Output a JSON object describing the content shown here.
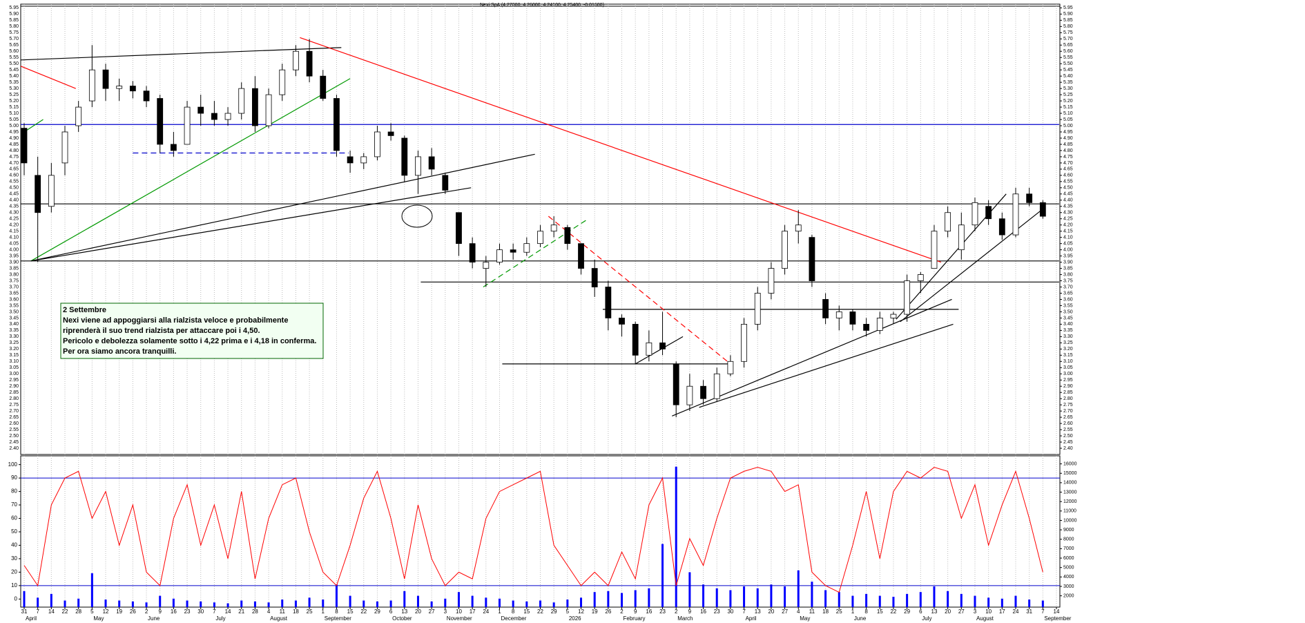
{
  "chart_data": {
    "type": "candlestick",
    "title": "Nexi SpA (4.27000, 4.26000, 4.24100, 4.25400, -0.01600)",
    "categories": [
      "31",
      "7",
      "14",
      "22",
      "28",
      "5",
      "12",
      "19",
      "26",
      "2",
      "9",
      "16",
      "23",
      "30",
      "7",
      "14",
      "21",
      "28",
      "4",
      "11",
      "18",
      "25",
      "1",
      "8",
      "15",
      "22",
      "29",
      "6",
      "13",
      "20",
      "27",
      "3",
      "10",
      "17",
      "24",
      "1",
      "8",
      "15",
      "22",
      "29",
      "5",
      "12",
      "19",
      "26",
      "2",
      "9",
      "16",
      "23",
      "2",
      "9",
      "16",
      "23",
      "30",
      "7",
      "13",
      "20",
      "27",
      "4",
      "11",
      "18",
      "25",
      "1",
      "8",
      "15",
      "22",
      "29",
      "6",
      "13",
      "20",
      "27",
      "3",
      "10",
      "17",
      "24",
      "31",
      "7",
      "14"
    ],
    "months": [
      "April",
      null,
      null,
      null,
      null,
      "May",
      null,
      null,
      null,
      "June",
      null,
      null,
      null,
      null,
      "July",
      null,
      null,
      null,
      "August",
      null,
      null,
      null,
      "September",
      null,
      null,
      null,
      null,
      "October",
      null,
      null,
      null,
      "November",
      null,
      null,
      null,
      "December",
      null,
      null,
      null,
      null,
      "2026",
      null,
      null,
      null,
      "February",
      null,
      null,
      null,
      "March",
      null,
      null,
      null,
      null,
      "April",
      null,
      null,
      null,
      "May",
      null,
      null,
      null,
      "June",
      null,
      null,
      null,
      null,
      "July",
      null,
      null,
      null,
      "August",
      null,
      null,
      null,
      null,
      "September",
      null
    ],
    "open": [
      4.98,
      4.6,
      4.35,
      4.7,
      5,
      5.2,
      5.45,
      5.3,
      5.32,
      5.28,
      5.22,
      4.85,
      4.85,
      5.15,
      5.1,
      5.05,
      5.1,
      5.3,
      5,
      5.25,
      5.45,
      5.6,
      5.4,
      5.22,
      4.75,
      4.7,
      4.75,
      4.95,
      4.9,
      4.6,
      4.75,
      4.6,
      4.3,
      4.05,
      3.85,
      3.9,
      4,
      3.98,
      4.05,
      4.15,
      4.18,
      4.05,
      3.85,
      3.7,
      3.45,
      3.4,
      3.15,
      3.25,
      3.08,
      2.75,
      2.9,
      2.8,
      3,
      3.1,
      3.4,
      3.65,
      3.85,
      4.15,
      4.1,
      3.6,
      3.45,
      3.5,
      3.4,
      3.35,
      3.45,
      3.48,
      3.75,
      3.85,
      4.15,
      4,
      4.2,
      4.35,
      4.25,
      4.12,
      4.45,
      4.38,
      null
    ],
    "high": [
      5.02,
      4.75,
      4.7,
      5,
      5.2,
      5.65,
      5.5,
      5.38,
      5.36,
      5.32,
      5.25,
      4.95,
      5.2,
      5.25,
      5.2,
      5.15,
      5.35,
      5.4,
      5.3,
      5.5,
      5.65,
      5.7,
      5.45,
      5.25,
      4.8,
      4.78,
      5,
      5.02,
      4.92,
      4.8,
      4.82,
      4.62,
      4.3,
      4.1,
      3.95,
      4.05,
      4.05,
      4.1,
      4.2,
      4.27,
      4.2,
      4.05,
      3.92,
      3.75,
      3.48,
      3.42,
      3.35,
      3.5,
      3.1,
      3,
      2.95,
      3.05,
      3.15,
      3.45,
      3.7,
      3.9,
      4.2,
      4.32,
      4.12,
      3.65,
      3.55,
      3.52,
      3.45,
      3.5,
      3.5,
      3.8,
      3.82,
      4.2,
      4.35,
      4.3,
      4.42,
      4.4,
      4.3,
      4.5,
      4.5,
      4.4,
      null
    ],
    "low": [
      4.6,
      3.9,
      4.3,
      4.6,
      4.95,
      5.15,
      5.2,
      5.2,
      5.22,
      5.15,
      4.78,
      4.75,
      4.85,
      5,
      5,
      5,
      5.05,
      4.95,
      4.98,
      5.2,
      5.4,
      5.35,
      5.2,
      4.75,
      4.62,
      4.65,
      4.72,
      4.88,
      4.55,
      4.45,
      4.6,
      4.45,
      3.95,
      3.85,
      3.7,
      3.88,
      3.92,
      3.95,
      4.02,
      4.1,
      4,
      3.8,
      3.62,
      3.35,
      3.3,
      3.08,
      3.1,
      3.15,
      2.65,
      2.7,
      2.75,
      2.78,
      2.98,
      3.05,
      3.35,
      3.6,
      3.8,
      4.05,
      3.7,
      3.4,
      3.35,
      3.35,
      3.3,
      3.32,
      3.4,
      3.42,
      3.65,
      3.85,
      4.1,
      3.92,
      4.15,
      4.2,
      4.08,
      4.1,
      4.35,
      4.25,
      null
    ],
    "close": [
      4.7,
      4.3,
      4.6,
      4.95,
      5.15,
      5.45,
      5.3,
      5.32,
      5.28,
      5.2,
      4.85,
      4.8,
      5.15,
      5.1,
      5.05,
      5.1,
      5.3,
      5,
      5.25,
      5.45,
      5.6,
      5.4,
      5.22,
      4.8,
      4.7,
      4.75,
      4.95,
      4.92,
      4.6,
      4.75,
      4.65,
      4.48,
      4.05,
      3.9,
      3.9,
      4,
      3.98,
      4.05,
      4.15,
      4.2,
      4.05,
      3.85,
      3.7,
      3.45,
      3.4,
      3.15,
      3.25,
      3.2,
      2.75,
      2.9,
      2.8,
      3,
      3.1,
      3.4,
      3.65,
      3.85,
      4.15,
      4.2,
      3.75,
      3.45,
      3.5,
      3.4,
      3.35,
      3.45,
      3.48,
      3.75,
      3.8,
      4.15,
      4.3,
      4.2,
      4.38,
      4.25,
      4.12,
      4.45,
      4.38,
      4.27,
      null
    ],
    "up_color": "#ffffff",
    "down_color": "#000000",
    "ylim": [
      2.35,
      5.98
    ],
    "yticks": [
      {
        "value": 2.4,
        "label": "2.40"
      },
      2.45,
      {
        "value": 2.5,
        "label": "2.50"
      },
      2.55,
      {
        "value": 2.6,
        "label": "2.60"
      },
      2.65,
      {
        "value": 2.7,
        "label": "2.70"
      },
      2.75,
      {
        "value": 2.8,
        "label": "2.80"
      },
      2.85,
      {
        "value": 2.9,
        "label": "2.90"
      },
      2.95,
      {
        "value": 3,
        "label": "3.00"
      },
      3.05,
      {
        "value": 3.1,
        "label": "3.10"
      },
      3.15,
      {
        "value": 3.2,
        "label": "3.20"
      },
      3.25,
      {
        "value": 3.3,
        "label": "3.30"
      },
      3.35,
      {
        "value": 3.4,
        "label": "3.40"
      },
      3.45,
      {
        "value": 3.5,
        "label": "3.50"
      },
      3.55,
      {
        "value": 3.6,
        "label": "3.60"
      },
      3.65,
      {
        "value": 3.7,
        "label": "3.70"
      },
      3.75,
      {
        "value": 3.8,
        "label": "3.80"
      },
      3.85,
      {
        "value": 3.9,
        "label": "3.90"
      },
      3.95,
      {
        "value": 4,
        "label": "4.00"
      },
      4.05,
      {
        "value": 4.1,
        "label": "4.10"
      },
      4.15,
      {
        "value": 4.2,
        "label": "4.20"
      },
      4.25,
      {
        "value": 4.3,
        "label": "4.30"
      },
      4.35,
      {
        "value": 4.4,
        "label": "4.40"
      },
      4.45,
      {
        "value": 4.5,
        "label": "4.50"
      },
      4.55,
      {
        "value": 4.6,
        "label": "4.60"
      },
      4.65,
      {
        "value": 4.7,
        "label": "4.70"
      },
      4.75,
      {
        "value": 4.8,
        "label": "4.80"
      },
      4.85,
      {
        "value": 4.9,
        "label": "4.90"
      },
      4.95,
      {
        "value": 5,
        "label": "5.00"
      },
      5.05,
      {
        "value": 5.1,
        "label": "5.10"
      },
      5.15,
      {
        "value": 5.2,
        "label": "5.20"
      },
      5.25,
      {
        "value": 5.3,
        "label": "5.30"
      },
      5.35,
      {
        "value": 5.4,
        "label": "5.40"
      },
      5.45,
      {
        "value": 5.5,
        "label": "5.50"
      },
      5.55,
      {
        "value": 5.6,
        "label": "5.60"
      },
      5.65,
      {
        "value": 5.7,
        "label": "5.70"
      },
      5.75,
      {
        "value": 5.8,
        "label": "5.80"
      },
      5.85,
      {
        "value": 5.9,
        "label": "5.90"
      },
      5.95
    ],
    "xgrid": true,
    "drawings": [
      {
        "x": [
          -0.25,
          76.2
        ],
        "y": [
          5.01,
          5.01
        ],
        "color": "#0000cc",
        "dash": false
      },
      {
        "x": [
          -0.25,
          76.2
        ],
        "y": [
          4.37,
          4.37
        ],
        "color": "#000000",
        "dash": false
      },
      {
        "x": [
          -0.25,
          76.2
        ],
        "y": [
          3.91,
          3.91
        ],
        "color": "#000000",
        "dash": false
      },
      {
        "x": [
          29.2,
          76.2
        ],
        "y": [
          3.74,
          3.74
        ],
        "color": "#000000",
        "dash": false
      },
      {
        "x": [
          42.6,
          68.8
        ],
        "y": [
          3.52,
          3.52
        ],
        "color": "#000000",
        "dash": false
      },
      {
        "x": [
          35.2,
          51.8
        ],
        "y": [
          3.08,
          3.08
        ],
        "color": "#000000",
        "dash": false
      },
      {
        "x": [
          -0.25,
          3.8
        ],
        "y": [
          5.48,
          5.3
        ],
        "color": "#ff0000",
        "dash": false
      },
      {
        "x": [
          -0.25,
          23.35
        ],
        "y": [
          5.53,
          5.63
        ],
        "color": "#000000",
        "dash": false
      },
      {
        "x": [
          20.3,
          67.5
        ],
        "y": [
          5.71,
          3.9
        ],
        "color": "#ff0000",
        "dash": false
      },
      {
        "x": [
          0.5,
          24
        ],
        "y": [
          3.91,
          5.38
        ],
        "color": "#009900",
        "dash": false
      },
      {
        "x": [
          0,
          1.4
        ],
        "y": [
          4.95,
          5.05
        ],
        "color": "#009900",
        "dash": false
      },
      {
        "x": [
          8,
          23.9
        ],
        "y": [
          4.78,
          4.78
        ],
        "color": "#0000cc",
        "dash": true
      },
      {
        "x": [
          0.5,
          37.6
        ],
        "y": [
          3.91,
          4.77
        ],
        "color": "#000000",
        "dash": false
      },
      {
        "x": [
          0.5,
          32.9
        ],
        "y": [
          3.91,
          4.5
        ],
        "color": "#000000",
        "dash": false
      },
      {
        "x": [
          33.8,
          41.4
        ],
        "y": [
          3.7,
          4.24
        ],
        "color": "#009900",
        "dash": true
      },
      {
        "x": [
          38.6,
          52
        ],
        "y": [
          4.27,
          3.08
        ],
        "color": "#ff0000",
        "dash": true
      },
      {
        "x": [
          45,
          48.5
        ],
        "y": [
          3.08,
          3.3
        ],
        "color": "#000000",
        "dash": false
      },
      {
        "x": [
          47.7,
          68.3
        ],
        "y": [
          2.66,
          3.6
        ],
        "color": "#000000",
        "dash": false
      },
      {
        "x": [
          49.7,
          68.4
        ],
        "y": [
          2.73,
          3.4
        ],
        "color": "#000000",
        "dash": false
      },
      {
        "x": [
          64.2,
          72.3
        ],
        "y": [
          3.44,
          4.45
        ],
        "color": "#000000",
        "dash": false
      },
      {
        "x": [
          64.5,
          74.9
        ],
        "y": [
          3.42,
          4.32
        ],
        "color": "#000000",
        "dash": false
      }
    ],
    "oscillator": {
      "values": [
        25,
        10,
        70,
        90,
        95,
        60,
        80,
        40,
        70,
        20,
        10,
        60,
        85,
        40,
        70,
        30,
        80,
        15,
        60,
        85,
        90,
        50,
        20,
        10,
        40,
        75,
        95,
        60,
        15,
        70,
        30,
        10,
        20,
        15,
        60,
        80,
        85,
        90,
        95,
        40,
        25,
        10,
        20,
        10,
        35,
        15,
        70,
        90,
        10,
        45,
        25,
        60,
        90,
        95,
        98,
        95,
        80,
        85,
        20,
        10,
        5,
        40,
        80,
        30,
        80,
        95,
        90,
        98,
        95,
        60,
        85,
        40,
        70,
        95,
        60,
        20,
        null
      ],
      "color": "#ff0000",
      "ylim": [
        -6,
        106.5
      ],
      "yticks": [
        0,
        10,
        20,
        30,
        40,
        50,
        60,
        70,
        80,
        90,
        100
      ],
      "levels": [
        10,
        90
      ],
      "level_color": "#0000cc"
    },
    "volume": {
      "values": [
        2500,
        1800,
        2200,
        1500,
        1700,
        4400,
        1600,
        1500,
        1400,
        1300,
        2000,
        1700,
        1500,
        1400,
        1300,
        1200,
        1500,
        1400,
        1300,
        1600,
        1500,
        1800,
        1600,
        3200,
        2000,
        1500,
        1400,
        1500,
        2500,
        2000,
        1400,
        1700,
        2400,
        2000,
        1800,
        1700,
        1500,
        1400,
        1500,
        1300,
        1600,
        1800,
        2400,
        2500,
        2300,
        2600,
        2800,
        7500,
        15700,
        4500,
        3200,
        2800,
        2600,
        3000,
        2800,
        3200,
        3000,
        4700,
        3500,
        2600,
        2400,
        2000,
        2200,
        2000,
        1900,
        2200,
        2400,
        3000,
        2500,
        2200,
        2000,
        1800,
        1700,
        2000,
        1600,
        1500,
        null
      ],
      "color": "#0000ff",
      "y2lim": [
        800,
        16850
      ],
      "y2ticks": [
        2000,
        3000,
        4000,
        5000,
        6000,
        7000,
        8000,
        9000,
        10000,
        11000,
        12000,
        13000,
        14000,
        15000,
        16000
      ]
    }
  },
  "annotation": {
    "title": "2 Settembre",
    "lines": [
      "Nexi viene ad appoggiarsi alla rialzista veloce e probabilmente",
      "riprenderà il suo trend rialzista per attaccare poi i 4,50.",
      "Pericolo e debolezza solamente sotto i 4,22 prima e i 4,18 in conferma.",
      "Per ora siamo ancora tranquilli."
    ]
  }
}
